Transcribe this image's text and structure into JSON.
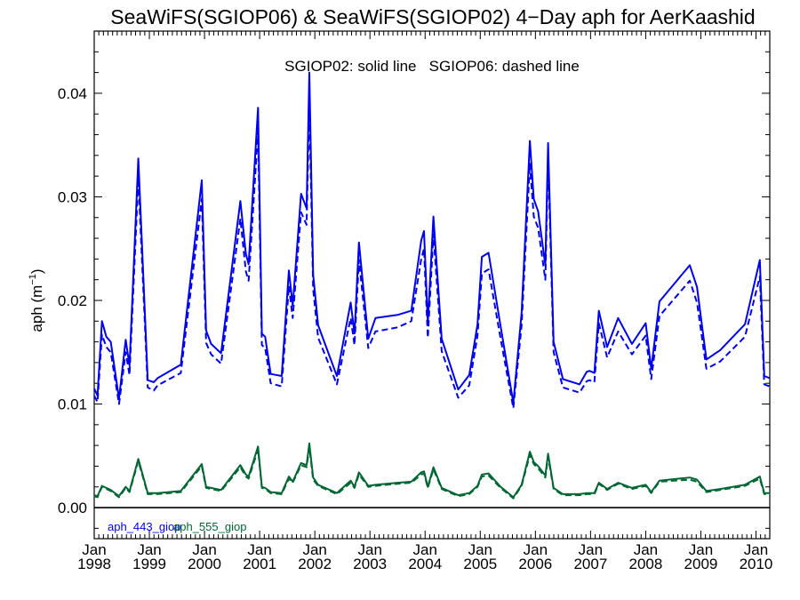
{
  "chart_data": {
    "type": "line",
    "title": "SeaWiFS(SGIOP06) & SeaWiFS(SGIOP02) 4−Day aph for AerKaashid",
    "annotation": "SGIOP02: solid line   SGIOP06: dashed line",
    "ylabel": "aph (m",
    "ylabel_sup": "−1",
    "ylabel_close": ")",
    "xlim": [
      1998.0,
      2010.25
    ],
    "ylim": [
      -0.003,
      0.046
    ],
    "ytick_values": [
      0.0,
      0.01,
      0.02,
      0.03,
      0.04
    ],
    "ytick_labels": [
      "0.00",
      "0.01",
      "0.02",
      "0.03",
      "0.04"
    ],
    "xtick_values": [
      1998,
      1999,
      2000,
      2001,
      2002,
      2003,
      2004,
      2005,
      2006,
      2007,
      2008,
      2009,
      2010
    ],
    "xtick_labels": [
      [
        "Jan",
        "1998"
      ],
      [
        "Jan",
        "1999"
      ],
      [
        "Jan",
        "2000"
      ],
      [
        "Jan",
        "2001"
      ],
      [
        "Jan",
        "2002"
      ],
      [
        "Jan",
        "2003"
      ],
      [
        "Jan",
        "2004"
      ],
      [
        "Jan",
        "2005"
      ],
      [
        "Jan",
        "2006"
      ],
      [
        "Jan",
        "2007"
      ],
      [
        "Jan",
        "2008"
      ],
      [
        "Jan",
        "2009"
      ],
      [
        "Jan",
        "2010"
      ]
    ],
    "zero_line": true,
    "grid": false,
    "legend_position": "bottom-left",
    "legend": [
      "aph_443_giop",
      "aph_555_giop"
    ],
    "x": [
      1998.0,
      1998.06,
      1998.14,
      1998.22,
      1998.3,
      1998.45,
      1998.57,
      1998.64,
      1998.8,
      1998.97,
      1999.08,
      1999.15,
      1999.57,
      1999.95,
      2000.03,
      2000.12,
      2000.3,
      2000.65,
      2000.75,
      2000.8,
      2000.97,
      2001.04,
      2001.1,
      2001.2,
      2001.4,
      2001.53,
      2001.6,
      2001.75,
      2001.85,
      2001.9,
      2001.97,
      2002.06,
      2002.4,
      2002.65,
      2002.72,
      2002.8,
      2002.97,
      2003.1,
      2003.5,
      2003.75,
      2003.93,
      2003.98,
      2004.05,
      2004.15,
      2004.3,
      2004.6,
      2004.8,
      2004.95,
      2005.03,
      2005.15,
      2005.37,
      2005.6,
      2005.75,
      2005.9,
      2005.97,
      2006.05,
      2006.18,
      2006.23,
      2006.33,
      2006.5,
      2006.8,
      2006.93,
      2006.98,
      2007.07,
      2007.15,
      2007.3,
      2007.5,
      2007.75,
      2008.0,
      2008.1,
      2008.25,
      2008.8,
      2008.93,
      2009.1,
      2009.35,
      2009.8,
      2010.07,
      2010.15,
      2010.25
    ],
    "series": [
      {
        "name": "aph_443_giop",
        "style": "solid",
        "color": "#0000ee",
        "values": [
          0.0115,
          0.0108,
          0.018,
          0.0165,
          0.016,
          0.0105,
          0.0162,
          0.0137,
          0.0337,
          0.0123,
          0.0121,
          0.0125,
          0.0138,
          0.0316,
          0.0171,
          0.0158,
          0.0149,
          0.0296,
          0.0245,
          0.0235,
          0.0386,
          0.0168,
          0.0165,
          0.0129,
          0.0127,
          0.0229,
          0.0195,
          0.0303,
          0.0289,
          0.042,
          0.0225,
          0.0176,
          0.0127,
          0.0198,
          0.0168,
          0.0256,
          0.0163,
          0.0183,
          0.0186,
          0.019,
          0.0258,
          0.0267,
          0.0178,
          0.0281,
          0.0163,
          0.0114,
          0.0128,
          0.0177,
          0.0242,
          0.0246,
          0.0175,
          0.0101,
          0.0188,
          0.0354,
          0.0298,
          0.0286,
          0.0234,
          0.0352,
          0.016,
          0.0124,
          0.0119,
          0.0131,
          0.0132,
          0.013,
          0.019,
          0.0155,
          0.0183,
          0.0158,
          0.0178,
          0.0134,
          0.0199,
          0.0234,
          0.0213,
          0.0143,
          0.0152,
          0.0177,
          0.0239,
          0.0127,
          0.0125
        ]
      },
      {
        "name": "aph_443_giop (SGIOP06)",
        "style": "dashed",
        "color": "#0000ee",
        "values": [
          0.0108,
          0.0102,
          0.0167,
          0.0155,
          0.015,
          0.01,
          0.015,
          0.0128,
          0.0318,
          0.0116,
          0.0113,
          0.0118,
          0.013,
          0.0298,
          0.0159,
          0.0148,
          0.0139,
          0.0279,
          0.0228,
          0.0219,
          0.0364,
          0.0157,
          0.0154,
          0.012,
          0.0117,
          0.0214,
          0.0183,
          0.0285,
          0.0273,
          0.039,
          0.0211,
          0.0164,
          0.0119,
          0.0183,
          0.0157,
          0.0239,
          0.0154,
          0.017,
          0.0174,
          0.018,
          0.024,
          0.025,
          0.0164,
          0.0264,
          0.0151,
          0.0106,
          0.0118,
          0.0166,
          0.0226,
          0.023,
          0.0163,
          0.0096,
          0.0176,
          0.0332,
          0.0281,
          0.027,
          0.022,
          0.0337,
          0.015,
          0.0116,
          0.0111,
          0.0122,
          0.0123,
          0.0121,
          0.0178,
          0.0145,
          0.017,
          0.0148,
          0.0166,
          0.0124,
          0.0185,
          0.0219,
          0.0198,
          0.0134,
          0.0141,
          0.0165,
          0.0223,
          0.0119,
          0.0117
        ]
      },
      {
        "name": "aph_555_giop",
        "style": "solid",
        "color": "#006633",
        "values": [
          0.0012,
          0.0011,
          0.0021,
          0.0019,
          0.0017,
          0.0011,
          0.002,
          0.0016,
          0.0047,
          0.0014,
          0.0014,
          0.0014,
          0.0016,
          0.0042,
          0.002,
          0.0019,
          0.0017,
          0.0041,
          0.0032,
          0.003,
          0.0059,
          0.002,
          0.0019,
          0.0015,
          0.0014,
          0.003,
          0.0025,
          0.0043,
          0.0041,
          0.0062,
          0.0029,
          0.0022,
          0.0014,
          0.0026,
          0.002,
          0.0034,
          0.0021,
          0.0022,
          0.0024,
          0.0025,
          0.0034,
          0.0035,
          0.002,
          0.0039,
          0.0019,
          0.0012,
          0.0014,
          0.0021,
          0.0032,
          0.0033,
          0.002,
          0.001,
          0.0022,
          0.0054,
          0.0044,
          0.004,
          0.0031,
          0.0052,
          0.0019,
          0.0013,
          0.0013,
          0.0014,
          0.0014,
          0.0014,
          0.0024,
          0.0018,
          0.0024,
          0.0019,
          0.0022,
          0.0015,
          0.0026,
          0.0029,
          0.0027,
          0.0016,
          0.0018,
          0.0022,
          0.003,
          0.0014,
          0.0014
        ]
      },
      {
        "name": "aph_555_giop (SGIOP06)",
        "style": "dashed",
        "color": "#006633",
        "values": [
          0.0011,
          0.001,
          0.002,
          0.0018,
          0.0016,
          0.001,
          0.0019,
          0.0015,
          0.0045,
          0.0013,
          0.0013,
          0.0013,
          0.0015,
          0.004,
          0.0019,
          0.0018,
          0.0016,
          0.0039,
          0.003,
          0.0028,
          0.0056,
          0.0019,
          0.0018,
          0.0014,
          0.0013,
          0.0028,
          0.0024,
          0.0041,
          0.0039,
          0.0058,
          0.0027,
          0.0021,
          0.0013,
          0.0024,
          0.0019,
          0.0032,
          0.002,
          0.0021,
          0.0023,
          0.0024,
          0.0032,
          0.0033,
          0.0019,
          0.0037,
          0.0018,
          0.0011,
          0.0013,
          0.002,
          0.003,
          0.0031,
          0.0019,
          0.0009,
          0.0021,
          0.0051,
          0.0042,
          0.0038,
          0.0029,
          0.0049,
          0.0018,
          0.0012,
          0.0012,
          0.0013,
          0.0013,
          0.0013,
          0.0023,
          0.0017,
          0.0023,
          0.0018,
          0.0021,
          0.0014,
          0.0025,
          0.0027,
          0.0025,
          0.0015,
          0.0017,
          0.0021,
          0.0028,
          0.0013,
          0.0013
        ]
      }
    ]
  },
  "colors": {
    "blue_series": "#0000ee",
    "green_series": "#006633",
    "axes": "#000000",
    "background": "#ffffff"
  }
}
